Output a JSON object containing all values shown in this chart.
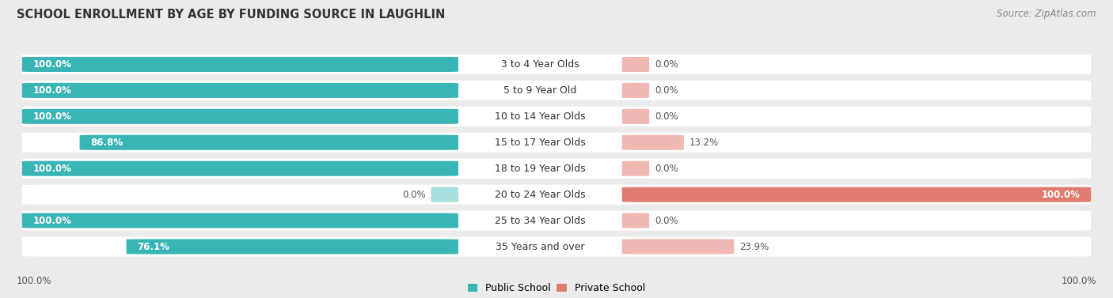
{
  "title": "SCHOOL ENROLLMENT BY AGE BY FUNDING SOURCE IN LAUGHLIN",
  "source": "Source: ZipAtlas.com",
  "categories": [
    "3 to 4 Year Olds",
    "5 to 9 Year Old",
    "10 to 14 Year Olds",
    "15 to 17 Year Olds",
    "18 to 19 Year Olds",
    "20 to 24 Year Olds",
    "25 to 34 Year Olds",
    "35 Years and over"
  ],
  "public_values": [
    100.0,
    100.0,
    100.0,
    86.8,
    100.0,
    0.0,
    100.0,
    76.1
  ],
  "private_values": [
    0.0,
    0.0,
    0.0,
    13.2,
    0.0,
    100.0,
    0.0,
    23.9
  ],
  "public_color": "#3ab5b5",
  "public_color_light": "#a8dede",
  "private_color": "#e07b72",
  "private_color_light": "#f0b8b3",
  "row_bg_color": "#ffffff",
  "bg_color": "#ebebeb",
  "title_fontsize": 10.5,
  "label_fontsize": 9,
  "bar_label_fontsize": 8.5,
  "legend_fontsize": 9,
  "source_fontsize": 8.5
}
